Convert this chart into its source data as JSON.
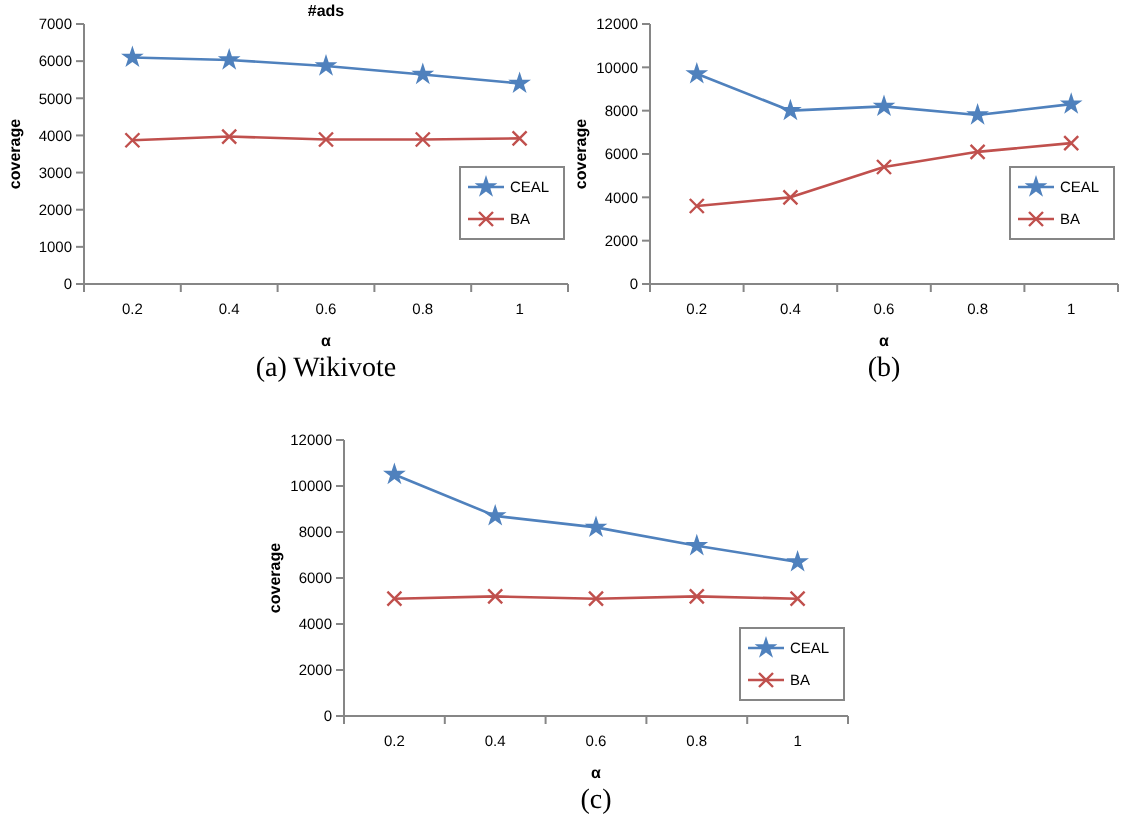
{
  "chart_data": [
    {
      "type": "line",
      "title": "#ads",
      "xlabel": "α",
      "ylabel": "coverage",
      "annotations": [
        "(a)  Wikivote"
      ],
      "categories": [
        "0.2",
        "0.4",
        "0.6",
        "0.8",
        "1"
      ],
      "ylim": [
        0,
        7000
      ],
      "yticks": [
        0,
        1000,
        2000,
        3000,
        4000,
        5000,
        6000,
        7000
      ],
      "grid": false,
      "legend": "right",
      "series": [
        {
          "name": "CEAL",
          "color": "#4f81bd",
          "marker": "star",
          "values": [
            6100,
            6030,
            5870,
            5640,
            5400
          ]
        },
        {
          "name": "BA",
          "color": "#c0504d",
          "marker": "cross",
          "values": [
            3870,
            3970,
            3890,
            3890,
            3920
          ]
        }
      ]
    },
    {
      "type": "line",
      "xlabel": "α",
      "ylabel": "coverage",
      "annotations": [
        "(b)"
      ],
      "categories": [
        "0.2",
        "0.4",
        "0.6",
        "0.8",
        "1"
      ],
      "ylim": [
        0,
        12000
      ],
      "yticks": [
        0,
        2000,
        4000,
        6000,
        8000,
        10000,
        12000
      ],
      "grid": false,
      "legend": "right",
      "series": [
        {
          "name": "CEAL",
          "color": "#4f81bd",
          "marker": "star",
          "values": [
            9700,
            8000,
            8200,
            7800,
            8300
          ]
        },
        {
          "name": "BA",
          "color": "#c0504d",
          "marker": "cross",
          "values": [
            3600,
            4000,
            5400,
            6100,
            6500
          ]
        }
      ]
    },
    {
      "type": "line",
      "xlabel": "α",
      "ylabel": "coverage",
      "annotations": [
        "(c)"
      ],
      "categories": [
        "0.2",
        "0.4",
        "0.6",
        "0.8",
        "1"
      ],
      "ylim": [
        0,
        12000
      ],
      "yticks": [
        0,
        2000,
        4000,
        6000,
        8000,
        10000,
        12000
      ],
      "grid": false,
      "legend": "bottom right",
      "series": [
        {
          "name": "CEAL",
          "color": "#4f81bd",
          "marker": "star",
          "values": [
            10500,
            8700,
            8200,
            7400,
            6700
          ]
        },
        {
          "name": "BA",
          "color": "#c0504d",
          "marker": "cross",
          "values": [
            5100,
            5200,
            5100,
            5200,
            5100
          ]
        }
      ]
    }
  ]
}
